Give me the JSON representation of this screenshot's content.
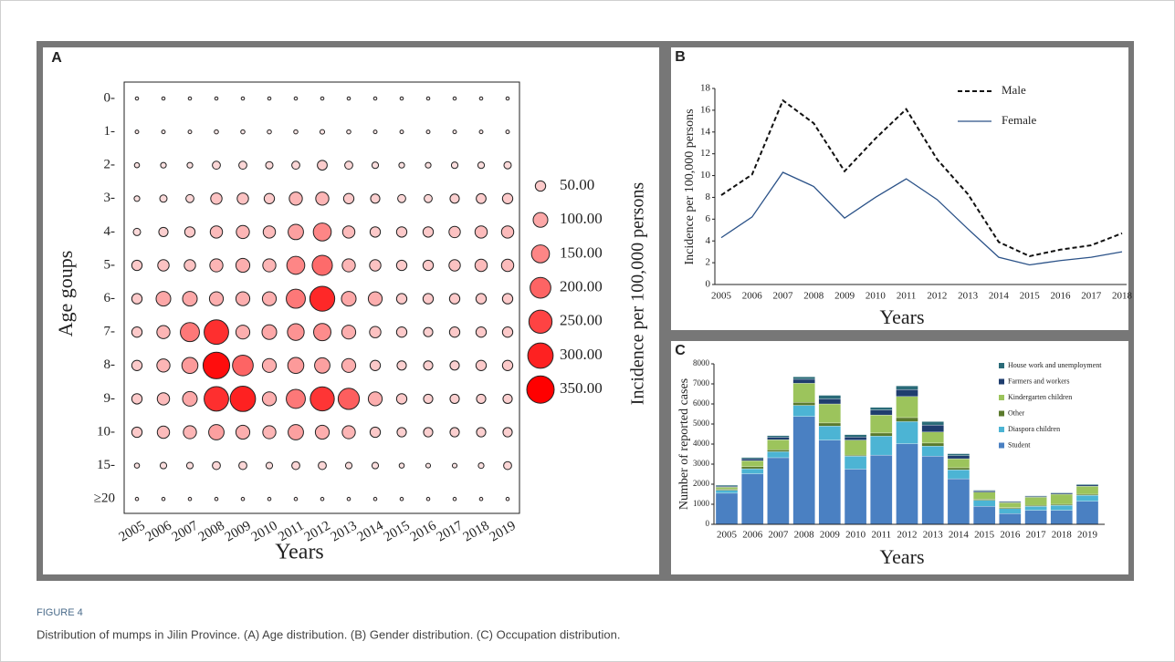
{
  "figure_label": "FIGURE 4",
  "caption": "Distribution of mumps in Jilin Province. (A) Age distribution. (B) Gender distribution. (C) Occupation distribution.",
  "chart_data": [
    {
      "type": "bubble",
      "panel": "A",
      "xlabel": "Years",
      "ylabel": "Age goups",
      "x_categories": [
        "2005",
        "2006",
        "2007",
        "2008",
        "2009",
        "2010",
        "2011",
        "2012",
        "2013",
        "2014",
        "2015",
        "2016",
        "2017",
        "2018",
        "2019"
      ],
      "y_categories": [
        "0-",
        "1-",
        "2-",
        "3-",
        "4-",
        "5-",
        "6-",
        "7-",
        "8-",
        "9-",
        "10-",
        "15-",
        "≥20"
      ],
      "values": [
        [
          5,
          5,
          5,
          5,
          5,
          5,
          5,
          5,
          5,
          5,
          5,
          5,
          5,
          5,
          5
        ],
        [
          6,
          6,
          6,
          8,
          8,
          8,
          8,
          10,
          8,
          6,
          6,
          6,
          6,
          6,
          6
        ],
        [
          12,
          15,
          15,
          30,
          30,
          25,
          30,
          45,
          30,
          20,
          15,
          15,
          20,
          20,
          25
        ],
        [
          15,
          25,
          30,
          60,
          60,
          50,
          80,
          80,
          50,
          40,
          30,
          30,
          40,
          45,
          50
        ],
        [
          25,
          40,
          50,
          70,
          80,
          70,
          110,
          150,
          70,
          50,
          50,
          50,
          60,
          70,
          70
        ],
        [
          50,
          60,
          60,
          80,
          90,
          80,
          150,
          190,
          80,
          60,
          50,
          50,
          60,
          70,
          70
        ],
        [
          50,
          100,
          100,
          90,
          90,
          90,
          170,
          290,
          100,
          90,
          50,
          50,
          50,
          50,
          50
        ],
        [
          50,
          80,
          170,
          280,
          90,
          100,
          130,
          140,
          90,
          60,
          50,
          40,
          50,
          50,
          50
        ],
        [
          50,
          80,
          120,
          330,
          200,
          90,
          120,
          110,
          90,
          50,
          40,
          40,
          40,
          50,
          50
        ],
        [
          50,
          70,
          100,
          280,
          300,
          90,
          170,
          270,
          210,
          90,
          50,
          40,
          40,
          40,
          40
        ],
        [
          50,
          70,
          80,
          110,
          90,
          80,
          110,
          90,
          80,
          50,
          40,
          40,
          40,
          40,
          40
        ],
        [
          12,
          20,
          20,
          30,
          30,
          20,
          30,
          30,
          20,
          20,
          12,
          10,
          10,
          15,
          30
        ],
        [
          5,
          5,
          5,
          5,
          5,
          5,
          5,
          5,
          5,
          5,
          5,
          5,
          5,
          5,
          5
        ]
      ],
      "color_range": [
        "#fbeaea",
        "#ff0000"
      ],
      "size_legend_title": "Incidence per 100,000 persons",
      "size_legend": [
        {
          "value": 50,
          "label": "50.00"
        },
        {
          "value": 100,
          "label": "100.00"
        },
        {
          "value": 150,
          "label": "150.00"
        },
        {
          "value": 200,
          "label": "200.00"
        },
        {
          "value": 250,
          "label": "250.00"
        },
        {
          "value": 300,
          "label": "300.00"
        },
        {
          "value": 350,
          "label": "350.00"
        }
      ]
    },
    {
      "type": "line",
      "panel": "B",
      "xlabel": "Years",
      "ylabel": "Incidence per 100,000 persons",
      "categories": [
        "2005",
        "2006",
        "2007",
        "2008",
        "2009",
        "2010",
        "2011",
        "2012",
        "2013",
        "2014",
        "2015",
        "2016",
        "2017",
        "2018"
      ],
      "ylim": [
        0,
        18
      ],
      "yticks": [
        0,
        2,
        4,
        6,
        8,
        10,
        12,
        14,
        16,
        18
      ],
      "series": [
        {
          "name": "Male",
          "color": "#111111",
          "dashed": true,
          "values": [
            8.2,
            10.1,
            16.9,
            14.8,
            10.4,
            13.4,
            16.1,
            11.5,
            8.3,
            3.9,
            2.6,
            3.2,
            3.6,
            4.7
          ]
        },
        {
          "name": "Female",
          "color": "#2b5288",
          "dashed": false,
          "values": [
            4.3,
            6.2,
            10.3,
            9.0,
            6.1,
            8.0,
            9.7,
            7.8,
            5.1,
            2.5,
            1.8,
            2.2,
            2.5,
            3.0
          ]
        }
      ]
    },
    {
      "type": "stacked_bar",
      "panel": "C",
      "xlabel": "Years",
      "ylabel": "Number of reported cases",
      "categories": [
        "2005",
        "2006",
        "2007",
        "2008",
        "2009",
        "2010",
        "2011",
        "2012",
        "2013",
        "2014",
        "2015",
        "2016",
        "2017",
        "2018",
        "2019"
      ],
      "ylim": [
        0,
        8000
      ],
      "yticks": [
        0,
        1000,
        2000,
        3000,
        4000,
        5000,
        6000,
        7000,
        8000
      ],
      "series": [
        {
          "name": "House work and unemployment",
          "color": "#2a6b78",
          "values": [
            50,
            60,
            80,
            120,
            180,
            120,
            130,
            180,
            170,
            100,
            40,
            30,
            30,
            30,
            40
          ]
        },
        {
          "name": "Farmers and workers",
          "color": "#1f3d6e",
          "values": [
            50,
            100,
            120,
            200,
            250,
            150,
            250,
            350,
            350,
            150,
            60,
            40,
            40,
            50,
            60
          ]
        },
        {
          "name": "Kindergarten children",
          "color": "#9cc45c",
          "values": [
            100,
            300,
            500,
            950,
            950,
            750,
            900,
            1050,
            550,
            450,
            350,
            250,
            400,
            500,
            400
          ]
        },
        {
          "name": "Other",
          "color": "#5b7a2c",
          "values": [
            50,
            100,
            100,
            150,
            150,
            50,
            150,
            200,
            150,
            100,
            50,
            50,
            50,
            50,
            50
          ]
        },
        {
          "name": "Diaspora children",
          "color": "#4cb4d4",
          "values": [
            150,
            250,
            300,
            550,
            700,
            650,
            950,
            1100,
            500,
            450,
            300,
            250,
            200,
            250,
            300
          ]
        },
        {
          "name": "Student",
          "color": "#4a80c2",
          "values": [
            1550,
            2520,
            3320,
            5380,
            4200,
            2750,
            3450,
            4020,
            3400,
            2270,
            900,
            530,
            700,
            700,
            1150
          ]
        }
      ]
    }
  ]
}
